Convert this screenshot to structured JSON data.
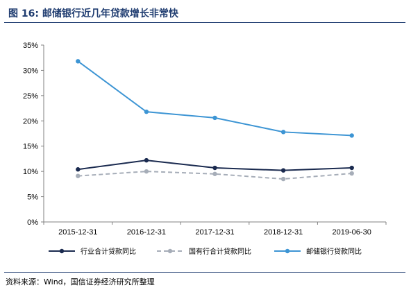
{
  "header": {
    "title": "图 16:  邮储银行近几年贷款增长非常快"
  },
  "footer": {
    "source": "资料来源：Wind，国信证券经济研究所整理"
  },
  "colors": {
    "title": "#1f3c70",
    "industry": "#1a2a4f",
    "state_owned": "#a6adb8",
    "psbc": "#3d95d4"
  },
  "chart_data": {
    "type": "line",
    "categories": [
      "2015-12-31",
      "2016-12-31",
      "2017-12-31",
      "2018-12-31",
      "2019-06-30"
    ],
    "ylim": [
      0,
      35
    ],
    "yticks": [
      "0%",
      "5%",
      "10%",
      "15%",
      "20%",
      "25%",
      "30%",
      "35%"
    ],
    "grid": false,
    "legend_position": "bottom",
    "series": [
      {
        "name": "行业合计贷款同比",
        "values": [
          10.4,
          12.2,
          10.7,
          10.2,
          10.7
        ],
        "style": "solid",
        "color": "#1a2a4f"
      },
      {
        "name": "国有行合计贷款同比",
        "values": [
          9.1,
          10.0,
          9.5,
          8.5,
          9.6
        ],
        "style": "dashed",
        "color": "#a6adb8"
      },
      {
        "name": "邮储银行贷款同比",
        "values": [
          31.8,
          21.8,
          20.6,
          17.8,
          17.1
        ],
        "style": "solid",
        "color": "#3d95d4"
      }
    ]
  }
}
